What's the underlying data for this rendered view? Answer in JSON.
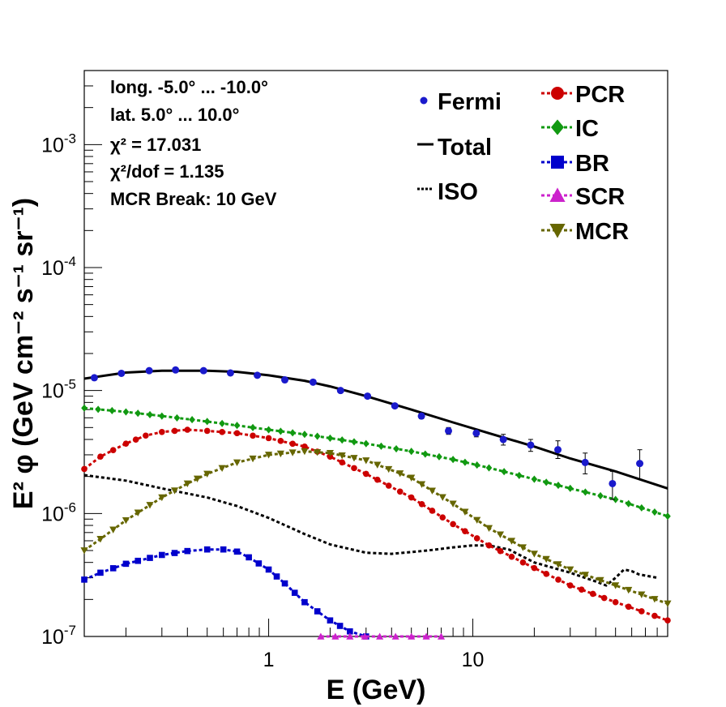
{
  "chart_data": {
    "type": "scatter",
    "xlabel": "E (GeV)",
    "ylabel": "E² φ (GeV cm⁻² s⁻¹ sr⁻¹)",
    "xscale": "log",
    "yscale": "log",
    "xlim": [
      0.125,
      90
    ],
    "ylim": [
      1e-07,
      0.004
    ],
    "x_tick_labels": [
      {
        "value": 1,
        "label": "1"
      },
      {
        "value": 10,
        "label": "10"
      }
    ],
    "y_tick_labels": [
      {
        "value": 1e-07,
        "base": "10",
        "exp": "-7"
      },
      {
        "value": 1e-06,
        "base": "10",
        "exp": "-6"
      },
      {
        "value": 1e-05,
        "base": "10",
        "exp": "-5"
      },
      {
        "value": 0.0001,
        "base": "10",
        "exp": "-4"
      },
      {
        "value": 0.001,
        "base": "10",
        "exp": "-3"
      }
    ],
    "info_lines": [
      "long. -5.0° ... -10.0°",
      "lat. 5.0° ... 10.0°",
      "χ² = 17.031",
      "χ²/dof = 1.135",
      "MCR Break: 10 GeV"
    ],
    "legend_left": [
      {
        "label": "Fermi",
        "color": "#1a1acc",
        "marker": "circle"
      },
      {
        "label": "Total",
        "color": "#000000",
        "marker": "line"
      },
      {
        "label": "ISO",
        "color": "#000000",
        "marker": "dotted-line"
      }
    ],
    "legend_right": [
      {
        "label": "PCR",
        "color": "#cc0000",
        "marker": "circle"
      },
      {
        "label": "IC",
        "color": "#119911",
        "marker": "diamond"
      },
      {
        "label": "BR",
        "color": "#0000cc",
        "marker": "square"
      },
      {
        "label": "SCR",
        "color": "#cc22cc",
        "marker": "triangle-up"
      },
      {
        "label": "MCR",
        "color": "#666600",
        "marker": "triangle-down"
      }
    ],
    "fermi": {
      "name": "Fermi",
      "color": "#1a1acc",
      "x": [
        0.14,
        0.19,
        0.26,
        0.35,
        0.48,
        0.65,
        0.88,
        1.2,
        1.65,
        2.25,
        3.05,
        4.15,
        5.6,
        7.6,
        10.4,
        14.1,
        19.2,
        26.1,
        35.5,
        48.3,
        65.7
      ],
      "y": [
        1.27e-05,
        1.38e-05,
        1.45e-05,
        1.47e-05,
        1.45e-05,
        1.39e-05,
        1.33e-05,
        1.22e-05,
        1.17e-05,
        1e-05,
        9e-06,
        7.5e-06,
        6.2e-06,
        4.7e-06,
        4.5e-06,
        4e-06,
        3.6e-06,
        3.3e-06,
        2.6e-06,
        1.75e-06,
        2.55e-06
      ],
      "y_low": [
        1.24e-05,
        1.35e-05,
        1.42e-05,
        1.44e-05,
        1.42e-05,
        1.36e-05,
        1.3e-05,
        1.19e-05,
        1.14e-05,
        9.7e-06,
        8.7e-06,
        7.2e-06,
        5.9e-06,
        4.4e-06,
        4.2e-06,
        3.6e-06,
        3.2e-06,
        2.8e-06,
        2.1e-06,
        1.3e-06,
        1.9e-06
      ],
      "y_high": [
        1.3e-05,
        1.41e-05,
        1.48e-05,
        1.5e-05,
        1.48e-05,
        1.42e-05,
        1.36e-05,
        1.25e-05,
        1.2e-05,
        1.03e-05,
        9.3e-06,
        7.8e-06,
        6.5e-06,
        5e-06,
        4.8e-06,
        4.4e-06,
        4e-06,
        3.9e-06,
        3.1e-06,
        2.2e-06,
        3.3e-06
      ]
    },
    "series": [
      {
        "name": "Total",
        "color": "#000000",
        "style": "solid",
        "marker": "none",
        "x": [
          0.125,
          0.2,
          0.3,
          0.5,
          0.7,
          1.0,
          1.5,
          2.0,
          3.0,
          5.0,
          8.0,
          12.0,
          20.0,
          30.0,
          50.0,
          90.0
        ],
        "y": [
          1.25e-05,
          1.4e-05,
          1.45e-05,
          1.45e-05,
          1.42e-05,
          1.33e-05,
          1.2e-05,
          1.08e-05,
          9e-06,
          7e-06,
          5.5e-06,
          4.5e-06,
          3.5e-06,
          2.8e-06,
          2.2e-06,
          1.6e-06
        ]
      },
      {
        "name": "ISO",
        "color": "#000000",
        "style": "dotted",
        "marker": "none",
        "x": [
          0.125,
          0.2,
          0.3,
          0.5,
          0.7,
          1.0,
          1.5,
          2.0,
          3.0,
          4.0,
          6.0,
          8.0,
          10.0,
          12.0,
          15.0,
          20.0,
          30.0,
          40.0,
          45.0,
          50.0,
          55.0,
          60.0,
          65.0,
          80.0
        ],
        "y": [
          2.05e-06,
          1.85e-06,
          1.6e-06,
          1.35e-06,
          1.15e-06,
          9.2e-07,
          6.8e-07,
          5.6e-07,
          4.8e-07,
          4.7e-07,
          5e-07,
          5.3e-07,
          5.5e-07,
          5.5e-07,
          5.1e-07,
          4e-07,
          3.3e-07,
          2.8e-07,
          2.6e-07,
          3e-07,
          3.5e-07,
          3.4e-07,
          3.2e-07,
          3e-07
        ]
      },
      {
        "name": "PCR",
        "color": "#cc0000",
        "style": "dotted",
        "marker": "circle",
        "x": [
          0.125,
          0.15,
          0.2,
          0.25,
          0.3,
          0.4,
          0.5,
          0.7,
          1.0,
          1.5,
          2.0,
          3.0,
          5.0,
          8.0,
          12.0,
          20.0,
          30.0,
          50.0,
          90.0
        ],
        "y": [
          2.3e-06,
          2.9e-06,
          3.7e-06,
          4.3e-06,
          4.6e-06,
          4.8e-06,
          4.7e-06,
          4.5e-06,
          4.1e-06,
          3.5e-06,
          2.9e-06,
          2.1e-06,
          1.35e-06,
          8.2e-07,
          5.5e-07,
          3.6e-07,
          2.6e-07,
          1.9e-07,
          1.35e-07
        ]
      },
      {
        "name": "IC",
        "color": "#119911",
        "style": "dotted",
        "marker": "diamond",
        "x": [
          0.125,
          0.2,
          0.3,
          0.5,
          0.7,
          1.0,
          1.5,
          2.0,
          3.0,
          5.0,
          8.0,
          12.0,
          20.0,
          30.0,
          50.0,
          90.0
        ],
        "y": [
          7.2e-06,
          6.7e-06,
          6.2e-06,
          5.6e-06,
          5.2e-06,
          4.8e-06,
          4.4e-06,
          4.1e-06,
          3.7e-06,
          3.2e-06,
          2.75e-06,
          2.35e-06,
          1.9e-06,
          1.6e-06,
          1.3e-06,
          9.5e-07
        ]
      },
      {
        "name": "BR",
        "color": "#0000cc",
        "style": "dotted",
        "marker": "square",
        "x": [
          0.125,
          0.15,
          0.2,
          0.3,
          0.4,
          0.5,
          0.6,
          0.7,
          0.8,
          1.0,
          1.2,
          1.5,
          2.0,
          2.5,
          3.0
        ],
        "y": [
          2.9e-07,
          3.3e-07,
          3.9e-07,
          4.6e-07,
          4.95e-07,
          5.1e-07,
          5.1e-07,
          4.9e-07,
          4.4e-07,
          3.5e-07,
          2.7e-07,
          1.9e-07,
          1.35e-07,
          1.1e-07,
          1e-07
        ]
      },
      {
        "name": "SCR",
        "color": "#cc22cc",
        "style": "dotted",
        "marker": "triangle-up",
        "x": [
          1.8,
          2.5,
          3.5,
          5.0,
          7.0
        ],
        "y": [
          1e-07,
          1e-07,
          1e-07,
          1e-07,
          1e-07
        ]
      },
      {
        "name": "MCR",
        "color": "#666600",
        "style": "dotted",
        "marker": "triangle-down",
        "x": [
          0.125,
          0.15,
          0.2,
          0.3,
          0.4,
          0.5,
          0.7,
          1.0,
          1.5,
          2.0,
          3.0,
          5.0,
          8.0,
          12.0,
          20.0,
          30.0,
          50.0,
          90.0
        ],
        "y": [
          5e-07,
          6.2e-07,
          8.8e-07,
          1.35e-06,
          1.75e-06,
          2.1e-06,
          2.6e-06,
          3e-06,
          3.2e-06,
          3.1e-06,
          2.7e-06,
          1.95e-06,
          1.2e-06,
          7.6e-07,
          4.7e-07,
          3.5e-07,
          2.6e-07,
          1.85e-07
        ]
      }
    ]
  }
}
